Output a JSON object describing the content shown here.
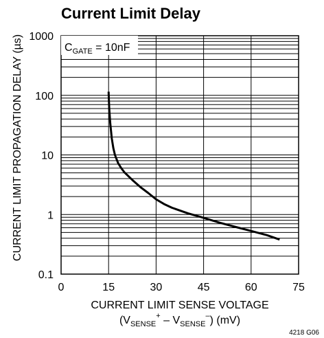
{
  "chart_data": {
    "type": "line",
    "title": "Current Limit Delay",
    "xlabel": "CURRENT LIMIT SENSE VOLTAGE",
    "xlabel_line2": {
      "open": "(V",
      "sub1": "SENSE",
      "sup1": "+",
      "mid": " – V",
      "sub2": "SENSE",
      "sup2": "–",
      "close": ") (mV)"
    },
    "ylabel": "CURRENT LIMIT PROPAGATION DELAY (µs)",
    "annotation": {
      "main": "C",
      "sub": "GATE",
      "rest": " = 10nF"
    },
    "figure_id": "4218 G06",
    "xlim": [
      0,
      75
    ],
    "ylim": [
      0.1,
      1000
    ],
    "yscale": "log",
    "grid": true,
    "x_ticks": [
      0,
      15,
      30,
      45,
      60,
      75
    ],
    "x_tick_labels": [
      "0",
      "15",
      "30",
      "45",
      "60",
      "75"
    ],
    "y_ticks": [
      0.1,
      1,
      10,
      100,
      1000
    ],
    "y_tick_labels": [
      "0.1",
      "1",
      "10",
      "100",
      "1000"
    ],
    "series": [
      {
        "x": [
          15.0,
          15.2,
          15.5,
          16.0,
          16.5,
          17.0,
          18.0,
          19.0,
          20.0,
          22.5,
          25.0,
          27.5,
          30.0,
          32.5,
          35.0,
          40.0,
          45.0,
          50.0,
          55.0,
          60.0,
          65.0,
          69.0
        ],
        "y": [
          115,
          60,
          35,
          19,
          13,
          10,
          7.3,
          6.0,
          5.1,
          3.8,
          2.9,
          2.3,
          1.8,
          1.5,
          1.3,
          1.05,
          0.88,
          0.73,
          0.62,
          0.53,
          0.45,
          0.38
        ]
      }
    ]
  }
}
